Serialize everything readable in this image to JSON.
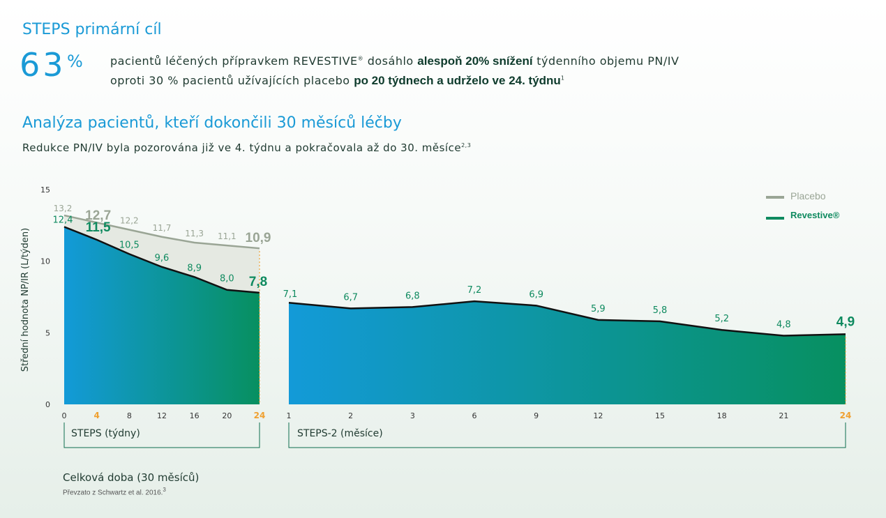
{
  "header": {
    "title": "STEPS primární cíl",
    "percent_value": "63",
    "percent_sign": "%",
    "line1_a": "pacientů léčených přípravkem REVESTIVE",
    "line1_reg": "®",
    "line1_b": " dosáhlo ",
    "line1_bold": "alespoň 20% snížení",
    "line1_c": " týdenního objemu PN/IV",
    "line2_a": "oproti 30 %  pacientů užívajících placebo ",
    "line2_bold": "po 20 týdnech a udrželo ve 24. týdnu",
    "line2_sup": "1"
  },
  "section": {
    "title": "Analýza pacientů, kteří dokončili 30 měsíců léčby",
    "subtitle": "Redukce PN/IV byla pozorována již ve 4. týdnu a pokračovala až do 30. měsíce",
    "subtitle_sup": "2,3"
  },
  "chart_data": [
    {
      "type": "area",
      "name": "STEPS",
      "title": "",
      "ylabel": "Střední hodnota NP/IR (L/týden)",
      "xlabel": "STEPS (týdny)",
      "ylim": [
        0,
        15
      ],
      "yticks": [
        "0",
        "5",
        "10",
        "15"
      ],
      "x": [
        0,
        4,
        8,
        12,
        16,
        20,
        24
      ],
      "highlight_x_labels": [
        "4",
        "24"
      ],
      "series": [
        {
          "name": "Placebo",
          "values": [
            13.2,
            12.7,
            12.2,
            11.7,
            11.3,
            11.1,
            10.9
          ],
          "labels": [
            "13,2",
            "12,7",
            "12,2",
            "11,7",
            "11,3",
            "11,1",
            "10,9"
          ],
          "color": "#9aa595"
        },
        {
          "name": "Revestive",
          "values": [
            12.4,
            11.5,
            10.5,
            9.6,
            8.9,
            8.0,
            7.8
          ],
          "labels": [
            "12,4",
            "11,5",
            "10,5",
            "9,6",
            "8,9",
            "8,0",
            "7,8"
          ],
          "color": "#0e8a5f"
        }
      ],
      "legend": [
        "Placebo",
        "Revestive®"
      ],
      "legend_position": "top-right"
    },
    {
      "type": "area",
      "name": "STEPS-2",
      "xlabel": "STEPS-2 (měsíce)",
      "categories": [
        "1",
        "2",
        "3",
        "6",
        "9",
        "12",
        "15",
        "18",
        "21",
        "24"
      ],
      "highlight_x_labels": [
        "24"
      ],
      "series": [
        {
          "name": "Revestive",
          "values": [
            7.1,
            6.7,
            6.8,
            7.2,
            6.9,
            5.9,
            5.8,
            5.2,
            4.8,
            4.9
          ],
          "labels": [
            "7,1",
            "6,7",
            "6,8",
            "7,2",
            "6,9",
            "5,9",
            "5,8",
            "5,2",
            "4,8",
            "4,9"
          ],
          "color": "#0e8a5f"
        }
      ]
    }
  ],
  "footer": {
    "total": "Celková doba (30 měsíců)",
    "source": "Převzato z Schwartz et al. 2016.",
    "source_sup": "3"
  },
  "colors": {
    "accent_blue": "#1a9ad6",
    "green": "#0e8a5f",
    "placebo_gray": "#9aa595",
    "highlight_orange": "#f0a030"
  }
}
